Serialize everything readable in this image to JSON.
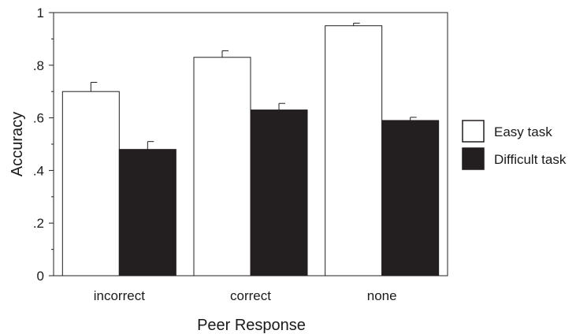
{
  "chart_data": {
    "type": "bar",
    "title": "",
    "xlabel": "Peer Response",
    "ylabel": "Accuracy",
    "ylim": [
      0,
      1
    ],
    "yticks": [
      {
        "value": 0,
        "label": "0"
      },
      {
        "value": 0.2,
        "label": ".2"
      },
      {
        "value": 0.4,
        "label": ".4"
      },
      {
        "value": 0.6,
        "label": ".6"
      },
      {
        "value": 0.8,
        "label": ".8"
      },
      {
        "value": 1,
        "label": "1"
      }
    ],
    "categories": [
      "incorrect",
      "correct",
      "none"
    ],
    "series": [
      {
        "name": "Easy task",
        "color": "#ffffff",
        "values": [
          0.7,
          0.83,
          0.95
        ],
        "errors": [
          0.035,
          0.025,
          0.01
        ]
      },
      {
        "name": "Difficult task",
        "color": "#231f20",
        "values": [
          0.48,
          0.63,
          0.59
        ],
        "errors": [
          0.03,
          0.025,
          0.012
        ]
      }
    ],
    "grid": false,
    "legend_position": "right"
  }
}
